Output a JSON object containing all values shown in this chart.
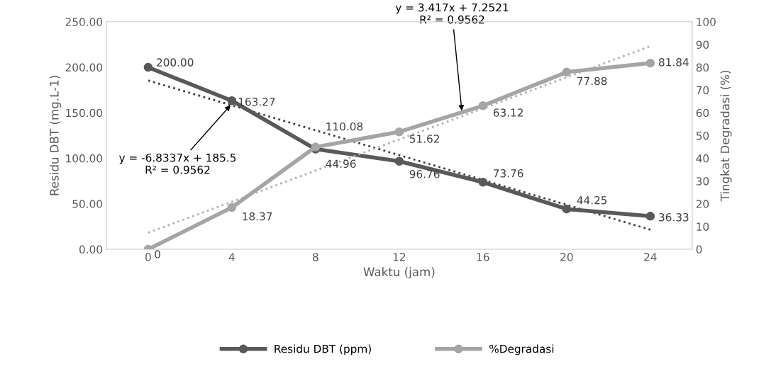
{
  "chart_data": {
    "type": "line",
    "xlabel": "Waktu (jam)",
    "ylabel": "Residu DBT (mg.L-1)",
    "y2label": "Tingkat Degradasi (%)",
    "x": [
      0,
      4,
      8,
      12,
      16,
      20,
      24
    ],
    "xlim": [
      -2,
      26
    ],
    "xticks": [
      0,
      4,
      8,
      12,
      16,
      20,
      24
    ],
    "ylim": [
      0,
      250
    ],
    "yticks": [
      {
        "value": 0,
        "label": "0.00"
      },
      {
        "value": 50,
        "label": "50.00"
      },
      {
        "value": 100,
        "label": "100.00"
      },
      {
        "value": 150,
        "label": "150.00"
      },
      {
        "value": 200,
        "label": "200.00"
      },
      {
        "value": 250,
        "label": "250.00"
      }
    ],
    "y2lim": [
      0,
      100
    ],
    "y2ticks": [
      0,
      10,
      20,
      30,
      40,
      50,
      60,
      70,
      80,
      90,
      100
    ],
    "series": [
      {
        "name": "Residu DBT (ppm)",
        "color": "#595959",
        "values": [
          200,
          163.27,
          110.08,
          96.76,
          73.76,
          44.25,
          36.33
        ],
        "value_labels": [
          "200.00",
          "163.27",
          "110.08",
          "96.76",
          "73.76",
          "44.25",
          "36.33"
        ],
        "marker": "circle"
      },
      {
        "name": "%Degradasi",
        "color": "#a5a5a5",
        "axis": "y2",
        "values": [
          0,
          18.37,
          44.96,
          51.62,
          63.12,
          77.88,
          81.84
        ],
        "value_labels": [
          "0",
          "18.37",
          "44.96",
          "51.62",
          "63.12",
          "77.88",
          "81.84"
        ],
        "marker": "circle"
      },
      {
        "type": "line",
        "color": "#404040",
        "values": [
          185.5,
          158.2,
          130.8,
          103.5,
          76.2,
          48.9,
          21.5
        ],
        "line_style": "dotted",
        "marker": "none"
      },
      {
        "type": "line",
        "color": "#b0b0b0",
        "axis": "y2",
        "values": [
          7.3,
          20.9,
          34.6,
          48.3,
          61.9,
          75.6,
          89.3
        ],
        "line_style": "dotted",
        "marker": "none"
      }
    ],
    "annotations": [
      {
        "text": "y = -6.8337x + 185.5\nR² = 0.9562",
        "x": 4,
        "y": 160
      },
      {
        "text": "y = 3.417x + 7.2521\nR² = 0.9562",
        "x": 15,
        "y": 150
      }
    ],
    "grid": false,
    "legend": "bottom"
  }
}
